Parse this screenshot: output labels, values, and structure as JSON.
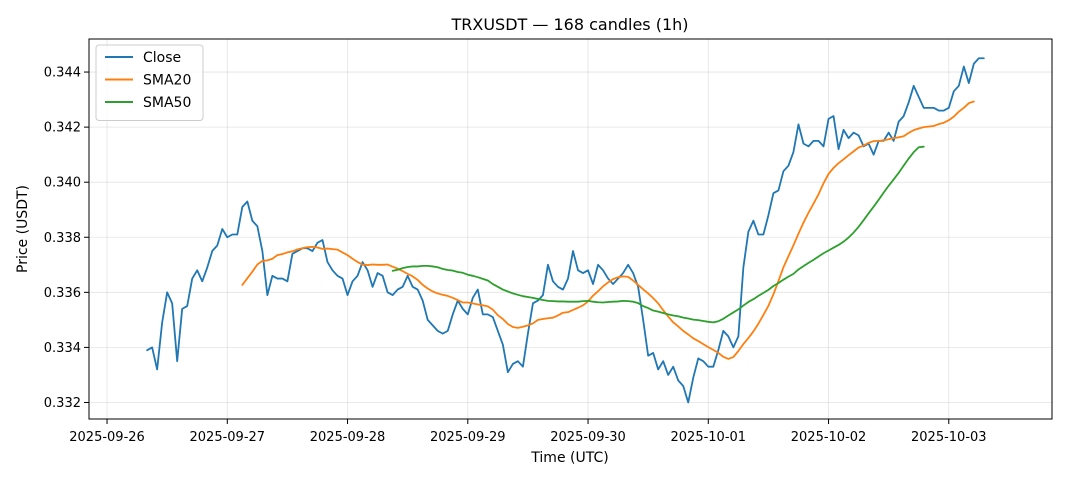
{
  "chart_data": {
    "type": "line",
    "title": "TRXUSDT — 168 candles (1h)",
    "xlabel": "Time (UTC)",
    "ylabel": "Price (USDT)",
    "x_start": "2025-09-26T08:00",
    "x_step_hours": 1,
    "xlim": [
      "2025-09-25T20:24",
      "2025-10-03T20:36"
    ],
    "ylim": [
      0.3314,
      0.3452
    ],
    "x_ticks": [
      "2025-09-26",
      "2025-09-27",
      "2025-09-28",
      "2025-09-29",
      "2025-09-30",
      "2025-10-01",
      "2025-10-02",
      "2025-10-03"
    ],
    "y_ticks": [
      0.332,
      0.334,
      0.336,
      0.338,
      0.34,
      0.342,
      0.344
    ],
    "y_tick_labels": [
      "0.332",
      "0.334",
      "0.336",
      "0.338",
      "0.340",
      "0.342",
      "0.344"
    ],
    "grid": true,
    "legend_position": "top-left",
    "series": [
      {
        "name": "Close",
        "color": "#1f77b4",
        "values": [
          0.3339,
          0.334,
          0.3332,
          0.3349,
          0.336,
          0.3356,
          0.3335,
          0.3354,
          0.3355,
          0.3365,
          0.3368,
          0.3364,
          0.3369,
          0.3375,
          0.3377,
          0.3383,
          0.338,
          0.3381,
          0.3381,
          0.3391,
          0.3393,
          0.3386,
          0.3384,
          0.3375,
          0.3359,
          0.3366,
          0.3365,
          0.3365,
          0.3364,
          0.3374,
          0.3375,
          0.3376,
          0.3376,
          0.3375,
          0.3378,
          0.3379,
          0.3371,
          0.3368,
          0.3366,
          0.3365,
          0.3359,
          0.3364,
          0.3366,
          0.3371,
          0.3368,
          0.3362,
          0.3367,
          0.3366,
          0.336,
          0.3359,
          0.3361,
          0.3362,
          0.3366,
          0.3362,
          0.3361,
          0.3357,
          0.335,
          0.3348,
          0.3346,
          0.3345,
          0.3346,
          0.3352,
          0.3357,
          0.3354,
          0.3352,
          0.3358,
          0.3361,
          0.3352,
          0.3352,
          0.3351,
          0.3346,
          0.3341,
          0.3331,
          0.3334,
          0.3335,
          0.3333,
          0.3345,
          0.3356,
          0.3357,
          0.3359,
          0.337,
          0.3364,
          0.3362,
          0.3361,
          0.3365,
          0.3375,
          0.3368,
          0.3367,
          0.3368,
          0.3363,
          0.337,
          0.3368,
          0.3365,
          0.3363,
          0.3365,
          0.3367,
          0.337,
          0.3367,
          0.3362,
          0.335,
          0.3337,
          0.3338,
          0.3332,
          0.3335,
          0.333,
          0.3333,
          0.3328,
          0.3326,
          0.332,
          0.3329,
          0.3336,
          0.3335,
          0.3333,
          0.3333,
          0.3339,
          0.3346,
          0.3344,
          0.334,
          0.3344,
          0.3369,
          0.3382,
          0.3386,
          0.3381,
          0.3381,
          0.3388,
          0.3396,
          0.3397,
          0.3404,
          0.3406,
          0.3411,
          0.3421,
          0.3414,
          0.3413,
          0.3415,
          0.3415,
          0.3413,
          0.3423,
          0.3424,
          0.3412,
          0.3419,
          0.3416,
          0.3418,
          0.3417,
          0.3413,
          0.3414,
          0.341,
          0.3415,
          0.3415,
          0.3418,
          0.3415,
          0.3422,
          0.3424,
          0.3429,
          0.3435,
          0.3431,
          0.3427,
          0.3427,
          0.3427,
          0.3426,
          0.3426,
          0.3427,
          0.3433,
          0.3435,
          0.3442,
          0.3436,
          0.3443,
          0.3445,
          0.3445
        ]
      },
      {
        "name": "SMA20",
        "color": "#ff7f0e",
        "start_index": 19,
        "values": [
          0.33627,
          0.33651,
          0.33675,
          0.33701,
          0.33714,
          0.33716,
          0.33722,
          0.33735,
          0.33739,
          0.33745,
          0.33749,
          0.33756,
          0.3376,
          0.33764,
          0.33765,
          0.33763,
          0.33758,
          0.33759,
          0.33757,
          0.33755,
          0.33745,
          0.33735,
          0.33722,
          0.3371,
          0.33701,
          0.33699,
          0.33701,
          0.337,
          0.337,
          0.33701,
          0.33693,
          0.33686,
          0.33677,
          0.33667,
          0.33658,
          0.33645,
          0.33627,
          0.33614,
          0.33603,
          0.33596,
          0.33591,
          0.33587,
          0.3358,
          0.33572,
          0.33563,
          0.33563,
          0.3356,
          0.33556,
          0.33553,
          0.33549,
          0.33537,
          0.33517,
          0.33503,
          0.33485,
          0.33474,
          0.33471,
          0.33475,
          0.3348,
          0.33487,
          0.335,
          0.33503,
          0.33506,
          0.33508,
          0.33516,
          0.33526,
          0.33528,
          0.33536,
          0.33544,
          0.33553,
          0.33567,
          0.33588,
          0.33604,
          0.33622,
          0.33636,
          0.33648,
          0.33655,
          0.33658,
          0.33656,
          0.33643,
          0.33627,
          0.33611,
          0.33596,
          0.33579,
          0.3356,
          0.33535,
          0.33512,
          0.33491,
          0.33476,
          0.3346,
          0.33447,
          0.33433,
          0.33423,
          0.33412,
          0.33401,
          0.33391,
          0.3338,
          0.33366,
          0.33358,
          0.33365,
          0.33387,
          0.33412,
          0.33434,
          0.33458,
          0.33486,
          0.33518,
          0.33551,
          0.33593,
          0.33641,
          0.33691,
          0.33731,
          0.33771,
          0.33813,
          0.33853,
          0.33889,
          0.33922,
          0.33956,
          0.33996,
          0.3403,
          0.34052,
          0.34069,
          0.34083,
          0.34098,
          0.34112,
          0.34126,
          0.34133,
          0.34143,
          0.34149,
          0.3415,
          0.34152,
          0.34156,
          0.3416,
          0.34163,
          0.34167,
          0.34179,
          0.34189,
          0.34195,
          0.342,
          0.34202,
          0.34204,
          0.34211,
          0.34216,
          0.34225,
          0.34238,
          0.34256,
          0.3427,
          0.34287,
          0.34293
        ]
      },
      {
        "name": "SMA50",
        "color": "#2ca02c",
        "start_index": 49,
        "values": [
          0.33678,
          0.33682,
          0.33688,
          0.33692,
          0.33694,
          0.33694,
          0.33696,
          0.33696,
          0.33694,
          0.33691,
          0.33685,
          0.33681,
          0.33679,
          0.33674,
          0.33671,
          0.33664,
          0.3366,
          0.33655,
          0.33649,
          0.33643,
          0.3363,
          0.3362,
          0.3361,
          0.33603,
          0.33596,
          0.33591,
          0.33586,
          0.33583,
          0.3358,
          0.33576,
          0.33572,
          0.33569,
          0.33568,
          0.33567,
          0.33567,
          0.33566,
          0.33566,
          0.33566,
          0.33568,
          0.33569,
          0.33566,
          0.33564,
          0.33563,
          0.33565,
          0.33566,
          0.33567,
          0.33569,
          0.33568,
          0.33566,
          0.33561,
          0.3355,
          0.33543,
          0.33534,
          0.3353,
          0.33525,
          0.3352,
          0.33516,
          0.33513,
          0.33508,
          0.33505,
          0.33501,
          0.33499,
          0.33496,
          0.33493,
          0.33491,
          0.33495,
          0.33504,
          0.33516,
          0.33527,
          0.33538,
          0.33552,
          0.33565,
          0.33575,
          0.33587,
          0.33598,
          0.33609,
          0.33623,
          0.33634,
          0.33646,
          0.33657,
          0.33667,
          0.33683,
          0.33695,
          0.33707,
          0.33718,
          0.3373,
          0.33742,
          0.33752,
          0.33762,
          0.33772,
          0.33784,
          0.33799,
          0.33817,
          0.33838,
          0.33862,
          0.33887,
          0.33911,
          0.33936,
          0.33962,
          0.33987,
          0.3401,
          0.34034,
          0.3406,
          0.34086,
          0.34109,
          0.34127,
          0.34129
        ]
      }
    ]
  }
}
